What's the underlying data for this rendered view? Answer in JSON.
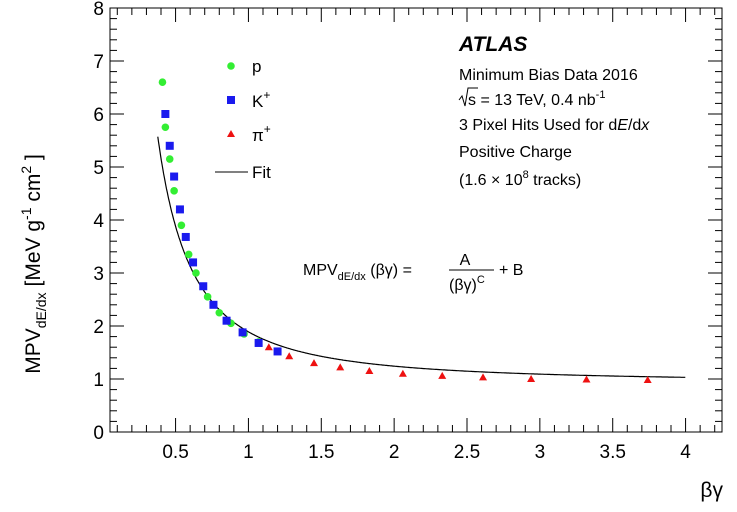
{
  "chart_data": {
    "type": "scatter",
    "xlabel": "βγ",
    "ylabel": {
      "main": "MPV",
      "sub": "dE/dx",
      "unit": "[MeV g",
      "exp1": "-1",
      "unit2": " cm",
      "exp2": "2",
      "close": " ]"
    },
    "xlim": [
      0.05,
      4.25
    ],
    "ylim": [
      0,
      8
    ],
    "x_ticks": [
      0.5,
      1,
      1.5,
      2,
      2.5,
      3,
      3.5,
      4
    ],
    "x_tick_labels": [
      "0.5",
      "1",
      "1.5",
      "2",
      "2.5",
      "3",
      "3.5",
      "4"
    ],
    "y_ticks": [
      0,
      1,
      2,
      3,
      4,
      5,
      6,
      7,
      8
    ],
    "y_tick_labels": [
      "0",
      "1",
      "2",
      "3",
      "4",
      "5",
      "6",
      "7",
      "8"
    ],
    "grid": false,
    "legend_position": "top-left",
    "series": [
      {
        "name": "p",
        "marker": "circle",
        "color": "#33ee33",
        "x": [
          0.41,
          0.43,
          0.46,
          0.49,
          0.54,
          0.59,
          0.64,
          0.72,
          0.8,
          0.88,
          0.97,
          1.07
        ],
        "y": [
          6.6,
          5.75,
          5.15,
          4.55,
          3.9,
          3.35,
          3.0,
          2.55,
          2.25,
          2.05,
          1.85,
          1.7
        ]
      },
      {
        "name": "K",
        "name_sup": "+",
        "marker": "square",
        "color": "#1a1aee",
        "x": [
          0.43,
          0.46,
          0.49,
          0.53,
          0.57,
          0.62,
          0.69,
          0.76,
          0.85,
          0.96,
          1.07,
          1.2
        ],
        "y": [
          6.0,
          5.4,
          4.82,
          4.2,
          3.68,
          3.2,
          2.75,
          2.4,
          2.1,
          1.88,
          1.68,
          1.52
        ]
      },
      {
        "name": "π",
        "name_sup": "+",
        "marker": "triangle",
        "color": "#ee1111",
        "x": [
          1.14,
          1.28,
          1.45,
          1.63,
          1.83,
          2.06,
          2.33,
          2.61,
          2.94,
          3.32,
          3.74
        ],
        "y": [
          1.6,
          1.43,
          1.3,
          1.22,
          1.15,
          1.1,
          1.06,
          1.03,
          1.0,
          0.99,
          0.98
        ]
      }
    ],
    "fit": {
      "name": "Fit",
      "color": "#000000",
      "model": "MPV = A/(βγ)^C + B",
      "A": 0.96,
      "C": 1.62,
      "B": 0.93,
      "x_range": [
        0.378,
        4.0
      ]
    },
    "annotations": {
      "title": "ATLAS",
      "lines": [
        {
          "pre": "Minimum Bias Data 2016"
        },
        {
          "root": "s",
          "pre": " = 13 TeV, 0.4 nb",
          "sup": "-1"
        },
        {
          "pre": "3 Pixel Hits Used for d",
          "italic": "E",
          "post": "/d",
          "italic2": "x"
        },
        {
          "pre": "Positive Charge"
        },
        {
          "pre": "(1.6 × 10",
          "sup": "8",
          "post": " tracks)"
        }
      ],
      "formula": {
        "lhs": "MPV",
        "lhs_sub": "dE/dx",
        "lhs_arg": " (βγ) =",
        "numerator": "A",
        "denominator": "(βγ)",
        "denominator_sup": "C",
        "rhs": "+ B"
      }
    }
  }
}
